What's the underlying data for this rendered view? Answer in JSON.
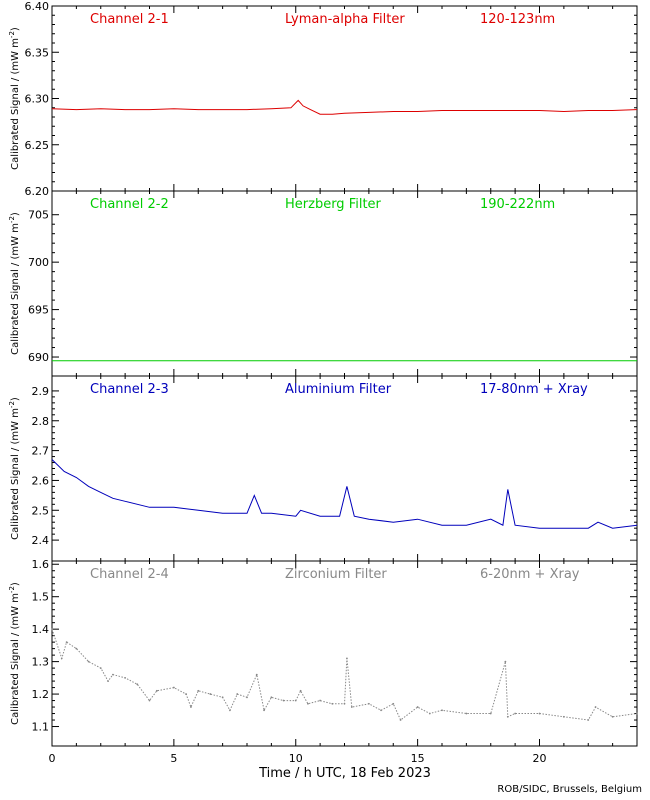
{
  "chart_data": [
    {
      "type": "line",
      "channel": "Channel 2-1",
      "filter": "Lyman-alpha Filter",
      "band": "120-123nm",
      "color": "#dd0000",
      "ylabel": "Calibrated Signal / (mW m",
      "ylabel_sup": "-2",
      "ylabel_close": ")",
      "ylim": [
        6.2,
        6.4
      ],
      "yticks": [
        6.2,
        6.25,
        6.3,
        6.35,
        6.4
      ],
      "ytick_labels": [
        "6.20",
        "6.25",
        "6.30",
        "6.35",
        "6.40"
      ],
      "x": [
        0,
        1,
        2,
        3,
        4,
        5,
        6,
        7,
        8,
        9,
        9.8,
        10.1,
        10.3,
        10.6,
        11.0,
        11.5,
        12,
        13,
        14,
        15,
        16,
        17,
        18,
        19,
        20,
        21,
        22,
        23,
        24
      ],
      "y": [
        6.289,
        6.288,
        6.289,
        6.288,
        6.288,
        6.289,
        6.288,
        6.288,
        6.288,
        6.289,
        6.29,
        6.298,
        6.292,
        6.288,
        6.283,
        6.283,
        6.284,
        6.285,
        6.286,
        6.286,
        6.287,
        6.287,
        6.287,
        6.287,
        6.287,
        6.286,
        6.287,
        6.287,
        6.288
      ]
    },
    {
      "type": "line",
      "channel": "Channel 2-2",
      "filter": "Herzberg Filter",
      "band": "190-222nm",
      "color": "#00cc00",
      "ylabel": "Calibrated Signal / (mW m",
      "ylabel_sup": "-2",
      "ylabel_close": ")",
      "ylim": [
        688,
        707.5
      ],
      "yticks": [
        690,
        695,
        700,
        705
      ],
      "ytick_labels": [
        "690",
        "695",
        "700",
        "705"
      ],
      "x": [
        0,
        24
      ],
      "y": [
        689.6,
        689.6
      ]
    },
    {
      "type": "line",
      "channel": "Channel 2-3",
      "filter": "Aluminium Filter",
      "band": "17-80nm + Xray",
      "color": "#0000bb",
      "ylabel": "Calibrated Signal / (mW m",
      "ylabel_sup": "-2",
      "ylabel_close": ")",
      "ylim": [
        2.33,
        2.95
      ],
      "yticks": [
        2.4,
        2.5,
        2.6,
        2.7,
        2.8,
        2.9
      ],
      "ytick_labels": [
        "2.4",
        "2.5",
        "2.6",
        "2.7",
        "2.8",
        "2.9"
      ],
      "x": [
        0,
        0.5,
        1,
        1.5,
        2,
        2.5,
        3,
        4,
        5,
        6,
        7,
        8,
        8.3,
        8.6,
        9,
        10,
        10.2,
        11,
        11.8,
        12.1,
        12.4,
        13,
        14,
        15,
        16,
        17,
        18,
        18.5,
        18.7,
        19,
        20,
        21,
        22,
        22.4,
        23,
        24
      ],
      "y": [
        2.67,
        2.63,
        2.61,
        2.58,
        2.56,
        2.54,
        2.53,
        2.51,
        2.51,
        2.5,
        2.49,
        2.49,
        2.55,
        2.49,
        2.49,
        2.48,
        2.5,
        2.48,
        2.48,
        2.58,
        2.48,
        2.47,
        2.46,
        2.47,
        2.45,
        2.45,
        2.47,
        2.45,
        2.57,
        2.45,
        2.44,
        2.44,
        2.44,
        2.46,
        2.44,
        2.45
      ]
    },
    {
      "type": "scatter",
      "channel": "Channel 2-4",
      "filter": "Zirconium Filter",
      "band": "6-20nm + Xray",
      "color": "#888888",
      "ylabel": "Calibrated Signal / (mW m",
      "ylabel_sup": "-2",
      "ylabel_close": ")",
      "ylim": [
        1.04,
        1.61
      ],
      "yticks": [
        1.1,
        1.2,
        1.3,
        1.4,
        1.5,
        1.6
      ],
      "ytick_labels": [
        "1.1",
        "1.2",
        "1.3",
        "1.4",
        "1.5",
        "1.6"
      ],
      "x": [
        0,
        0.4,
        0.6,
        1,
        1.5,
        2,
        2.3,
        2.5,
        3,
        3.5,
        4,
        4.3,
        5,
        5.5,
        5.7,
        6,
        6.5,
        7,
        7.3,
        7.6,
        8,
        8.4,
        8.7,
        9,
        9.5,
        10,
        10.2,
        10.5,
        11,
        11.5,
        12,
        12.1,
        12.3,
        13,
        13.5,
        14,
        14.3,
        15,
        15.5,
        16,
        17,
        18,
        18.6,
        18.7,
        19,
        20,
        21,
        22,
        22.3,
        23,
        24
      ],
      "y": [
        1.4,
        1.31,
        1.36,
        1.34,
        1.3,
        1.28,
        1.24,
        1.26,
        1.25,
        1.23,
        1.18,
        1.21,
        1.22,
        1.2,
        1.16,
        1.21,
        1.2,
        1.19,
        1.15,
        1.2,
        1.19,
        1.26,
        1.15,
        1.19,
        1.18,
        1.18,
        1.21,
        1.17,
        1.18,
        1.17,
        1.17,
        1.31,
        1.16,
        1.17,
        1.15,
        1.17,
        1.12,
        1.16,
        1.14,
        1.15,
        1.14,
        1.14,
        1.3,
        1.13,
        1.14,
        1.14,
        1.13,
        1.12,
        1.16,
        1.13,
        1.14
      ]
    }
  ],
  "x_axis": {
    "xlim": [
      0,
      24
    ],
    "xticks": [
      0,
      5,
      10,
      15,
      20
    ],
    "xtick_labels": [
      "0",
      "5",
      "10",
      "15",
      "20"
    ],
    "xlabel": "Time / h UTC, 18 Feb 2023"
  },
  "credit": "ROB/SIDC, Brussels, Belgium"
}
